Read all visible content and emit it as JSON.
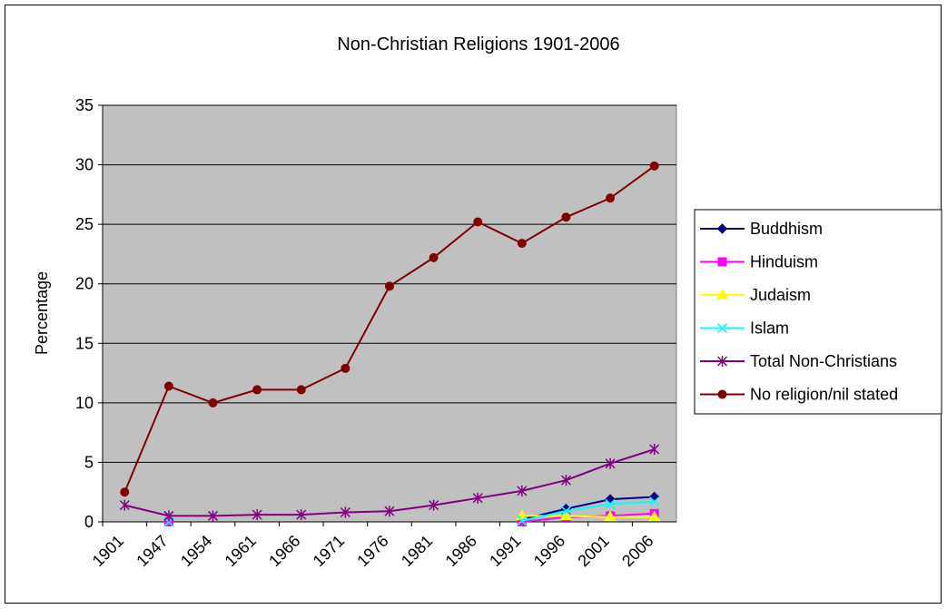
{
  "chart_data": {
    "type": "line",
    "title": "Non-Christian Religions 1901-2006",
    "xlabel": "",
    "ylabel": "Percentage",
    "categories": [
      "1901",
      "1947",
      "1954",
      "1961",
      "1966",
      "1971",
      "1976",
      "1981",
      "1986",
      "1991",
      "1996",
      "2001",
      "2006"
    ],
    "ylim": [
      0,
      35
    ],
    "yticks": [
      0,
      5,
      10,
      15,
      20,
      25,
      30,
      35
    ],
    "grid": true,
    "plot_background": "#c0c0c0",
    "legend_position": "right",
    "series": [
      {
        "name": "Buddhism",
        "color": "#000080",
        "marker": "diamond",
        "values": [
          null,
          null,
          null,
          null,
          null,
          null,
          null,
          null,
          null,
          0.2,
          1.1,
          1.9,
          2.1
        ]
      },
      {
        "name": "Hinduism",
        "color": "#ff00ff",
        "marker": "square",
        "values": [
          null,
          0.0,
          null,
          null,
          null,
          null,
          null,
          null,
          null,
          0.0,
          0.4,
          0.5,
          0.7
        ]
      },
      {
        "name": "Judaism",
        "color": "#ffff00",
        "marker": "triangle",
        "values": [
          null,
          null,
          null,
          null,
          null,
          null,
          null,
          null,
          null,
          0.5,
          0.5,
          0.4,
          0.4
        ]
      },
      {
        "name": "Islam",
        "color": "#00ffff",
        "marker": "x",
        "values": [
          null,
          0.0,
          null,
          null,
          null,
          null,
          null,
          null,
          null,
          0.1,
          0.9,
          1.5,
          1.7
        ]
      },
      {
        "name": "Total Non-Christians",
        "color": "#800080",
        "marker": "star",
        "values": [
          1.4,
          0.5,
          0.5,
          0.6,
          0.6,
          0.8,
          0.9,
          1.4,
          2.0,
          2.6,
          3.5,
          4.9,
          6.1
        ]
      },
      {
        "name": "No religion/nil stated",
        "color": "#800000",
        "marker": "circle",
        "values": [
          2.5,
          11.4,
          10.0,
          11.1,
          11.1,
          12.9,
          19.8,
          22.2,
          25.2,
          23.4,
          25.6,
          27.2,
          29.9
        ]
      }
    ]
  }
}
